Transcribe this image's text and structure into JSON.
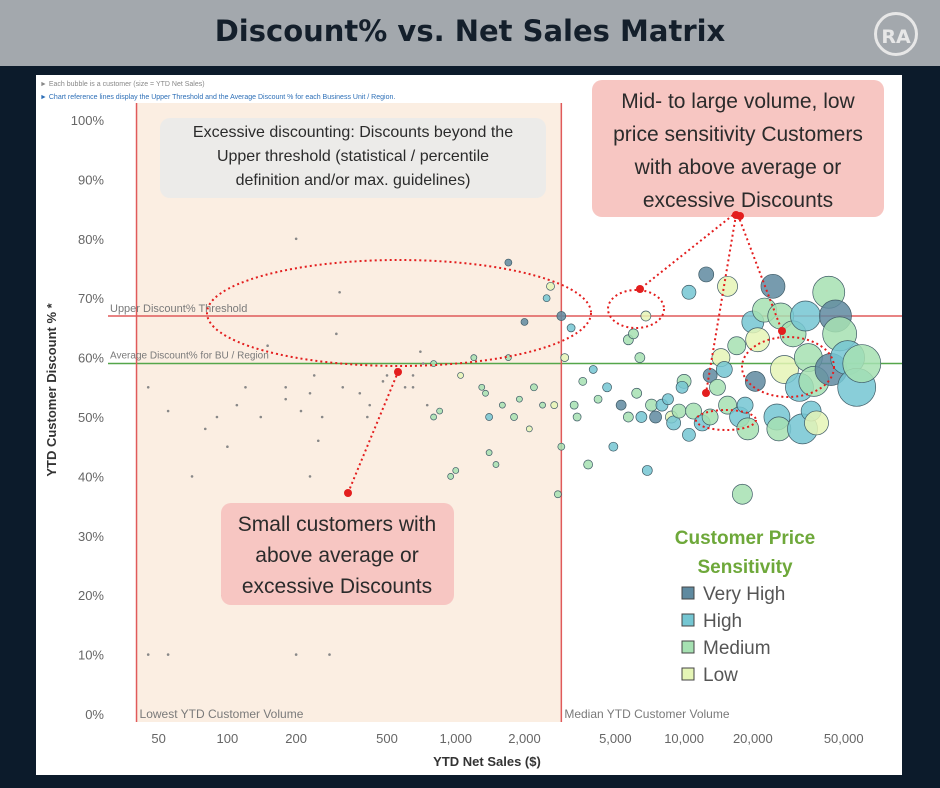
{
  "page": {
    "title": "Discount% vs. Net Sales Matrix",
    "logo_text": "RA",
    "notes": [
      "► Each bubble is a customer (size = YTD Net Sales)",
      "► Chart reference lines display the Upper Threshold and the Average Discount % for each Business Unit / Region."
    ]
  },
  "callouts": {
    "excessive": [
      "Excessive discounting: Discounts beyond the",
      "Upper threshold (statistical / percentile",
      "definition and/or max. guidelines)"
    ],
    "midlarge": [
      "Mid- to large volume, low",
      "price sensitivity Customers",
      "with above average or",
      "excessive Discounts"
    ],
    "small": [
      "Small customers with",
      "above average or",
      "excessive Discounts"
    ]
  },
  "colors": {
    "very_high": "#5f8aa0",
    "high": "#74c6d2",
    "medium": "#a6e1b2",
    "low": "#e5f5b6",
    "small_dot": "#b0b0b0",
    "ref_line_red": "#e05a5a",
    "avg_line_green": "#55a64a",
    "shade": "#fbeee2",
    "annotation_red": "#e31e1e",
    "callout_pink": "#f7c6c2",
    "callout_grey": "#ebebe9",
    "legend_title": "#6ea83a"
  },
  "chart_data": {
    "type": "scatter",
    "title": "",
    "xlabel": "YTD Net Sales ($)",
    "ylabel": "YTD Customer Discount % *",
    "xscale": "log",
    "xlim": [
      30,
      90000
    ],
    "ylim": [
      0,
      100
    ],
    "x_ticks": [
      50,
      100,
      200,
      500,
      1000,
      2000,
      5000,
      10000,
      20000,
      50000
    ],
    "x_tick_labels": [
      "50",
      "100",
      "200",
      "500",
      "1,000",
      "2,000",
      "5,000",
      "10,000",
      "20,000",
      "50,000"
    ],
    "y_ticks": [
      0,
      10,
      20,
      30,
      40,
      50,
      60,
      70,
      80,
      90,
      100
    ],
    "y_tick_labels": [
      "0%",
      "10%",
      "20%",
      "30%",
      "40%",
      "50%",
      "60%",
      "70%",
      "80%",
      "90%",
      "100%"
    ],
    "grid": false,
    "reference_lines": [
      {
        "axis": "y",
        "value": 67,
        "label": "Upper Discount% Threshold"
      },
      {
        "axis": "y",
        "value": 59,
        "label": "Average Discount% for BU / Region"
      },
      {
        "axis": "x",
        "value": 40,
        "label": "Lowest YTD Customer Volume"
      },
      {
        "axis": "x",
        "value": 2900,
        "label": "Median YTD Customer Volume"
      }
    ],
    "legend": {
      "title": [
        "Customer Price",
        "Sensitivity"
      ],
      "position": "right",
      "entries": [
        {
          "key": "very_high",
          "label": "Very High"
        },
        {
          "key": "high",
          "label": "High"
        },
        {
          "key": "medium",
          "label": "Medium"
        },
        {
          "key": "low",
          "label": "Low"
        }
      ]
    },
    "points": [
      {
        "x": 45,
        "y": 10,
        "c": "small"
      },
      {
        "x": 55,
        "y": 10,
        "c": "small"
      },
      {
        "x": 200,
        "y": 10,
        "c": "small"
      },
      {
        "x": 280,
        "y": 10,
        "c": "small"
      },
      {
        "x": 95,
        "y": 20,
        "c": "small"
      },
      {
        "x": 45,
        "y": 55,
        "c": "small"
      },
      {
        "x": 55,
        "y": 51,
        "c": "small"
      },
      {
        "x": 70,
        "y": 40,
        "c": "small"
      },
      {
        "x": 80,
        "y": 48,
        "c": "small"
      },
      {
        "x": 90,
        "y": 50,
        "c": "small"
      },
      {
        "x": 100,
        "y": 45,
        "c": "small"
      },
      {
        "x": 110,
        "y": 52,
        "c": "small"
      },
      {
        "x": 120,
        "y": 55,
        "c": "small"
      },
      {
        "x": 140,
        "y": 50,
        "c": "small"
      },
      {
        "x": 150,
        "y": 62,
        "c": "small"
      },
      {
        "x": 180,
        "y": 55,
        "c": "small"
      },
      {
        "x": 200,
        "y": 80,
        "c": "small"
      },
      {
        "x": 210,
        "y": 51,
        "c": "small"
      },
      {
        "x": 230,
        "y": 54,
        "c": "small"
      },
      {
        "x": 250,
        "y": 46,
        "c": "small"
      },
      {
        "x": 260,
        "y": 50,
        "c": "small"
      },
      {
        "x": 300,
        "y": 64,
        "c": "small"
      },
      {
        "x": 310,
        "y": 71,
        "c": "small"
      },
      {
        "x": 320,
        "y": 55,
        "c": "small"
      },
      {
        "x": 180,
        "y": 53,
        "c": "small"
      },
      {
        "x": 230,
        "y": 40,
        "c": "small"
      },
      {
        "x": 380,
        "y": 54,
        "c": "small"
      },
      {
        "x": 240,
        "y": 57,
        "c": "small"
      },
      {
        "x": 550,
        "y": 58,
        "c": "small"
      },
      {
        "x": 650,
        "y": 57,
        "c": "small"
      },
      {
        "x": 720,
        "y": 59,
        "c": "small"
      },
      {
        "x": 410,
        "y": 50,
        "c": "small"
      },
      {
        "x": 420,
        "y": 52,
        "c": "small"
      },
      {
        "x": 480,
        "y": 56,
        "c": "small"
      },
      {
        "x": 500,
        "y": 57,
        "c": "small"
      },
      {
        "x": 600,
        "y": 55,
        "c": "small"
      },
      {
        "x": 650,
        "y": 55,
        "c": "small"
      },
      {
        "x": 700,
        "y": 61,
        "c": "small"
      },
      {
        "x": 750,
        "y": 52,
        "c": "small"
      },
      {
        "x": 850,
        "y": 51,
        "c": "medium",
        "s": 3
      },
      {
        "x": 800,
        "y": 50,
        "c": "medium",
        "s": 3
      },
      {
        "x": 800,
        "y": 59,
        "c": "medium",
        "s": 3
      },
      {
        "x": 1050,
        "y": 57,
        "c": "low",
        "s": 3
      },
      {
        "x": 1000,
        "y": 41,
        "c": "medium",
        "s": 3
      },
      {
        "x": 950,
        "y": 40,
        "c": "medium",
        "s": 3
      },
      {
        "x": 1200,
        "y": 60,
        "c": "medium",
        "s": 3
      },
      {
        "x": 1300,
        "y": 55,
        "c": "medium",
        "s": 3
      },
      {
        "x": 1350,
        "y": 54,
        "c": "medium",
        "s": 3
      },
      {
        "x": 1400,
        "y": 50,
        "c": "high",
        "s": 3.5
      },
      {
        "x": 1400,
        "y": 44,
        "c": "medium",
        "s": 3
      },
      {
        "x": 1500,
        "y": 42,
        "c": "medium",
        "s": 3
      },
      {
        "x": 1600,
        "y": 52,
        "c": "medium",
        "s": 3
      },
      {
        "x": 1700,
        "y": 60,
        "c": "medium",
        "s": 3
      },
      {
        "x": 1700,
        "y": 76,
        "c": "very_high",
        "s": 3.5
      },
      {
        "x": 1800,
        "y": 50,
        "c": "medium",
        "s": 3.5
      },
      {
        "x": 1900,
        "y": 53,
        "c": "medium",
        "s": 3
      },
      {
        "x": 2000,
        "y": 66,
        "c": "very_high",
        "s": 3.5
      },
      {
        "x": 2100,
        "y": 48,
        "c": "low",
        "s": 3
      },
      {
        "x": 2200,
        "y": 55,
        "c": "medium",
        "s": 3.5
      },
      {
        "x": 2400,
        "y": 52,
        "c": "medium",
        "s": 3
      },
      {
        "x": 2500,
        "y": 70,
        "c": "high",
        "s": 3.5
      },
      {
        "x": 2600,
        "y": 72,
        "c": "low",
        "s": 4
      },
      {
        "x": 2700,
        "y": 52,
        "c": "low",
        "s": 3.5
      },
      {
        "x": 2800,
        "y": 37,
        "c": "medium",
        "s": 3.5
      },
      {
        "x": 2900,
        "y": 45,
        "c": "medium",
        "s": 3.5
      },
      {
        "x": 2900,
        "y": 67,
        "c": "very_high",
        "s": 4.5
      },
      {
        "x": 3000,
        "y": 60,
        "c": "low",
        "s": 4
      },
      {
        "x": 3200,
        "y": 65,
        "c": "high",
        "s": 4
      },
      {
        "x": 3300,
        "y": 52,
        "c": "medium",
        "s": 4
      },
      {
        "x": 3400,
        "y": 50,
        "c": "medium",
        "s": 4
      },
      {
        "x": 3600,
        "y": 56,
        "c": "medium",
        "s": 4
      },
      {
        "x": 3800,
        "y": 42,
        "c": "medium",
        "s": 4.5
      },
      {
        "x": 4000,
        "y": 58,
        "c": "high",
        "s": 4
      },
      {
        "x": 4200,
        "y": 53,
        "c": "medium",
        "s": 4
      },
      {
        "x": 4600,
        "y": 55,
        "c": "high",
        "s": 4.5
      },
      {
        "x": 4900,
        "y": 45,
        "c": "high",
        "s": 4.5
      },
      {
        "x": 5300,
        "y": 52,
        "c": "very_high",
        "s": 5
      },
      {
        "x": 5700,
        "y": 63,
        "c": "medium",
        "s": 5
      },
      {
        "x": 5700,
        "y": 50,
        "c": "medium",
        "s": 5
      },
      {
        "x": 6000,
        "y": 64,
        "c": "medium",
        "s": 5
      },
      {
        "x": 6200,
        "y": 54,
        "c": "medium",
        "s": 5
      },
      {
        "x": 6400,
        "y": 60,
        "c": "medium",
        "s": 5
      },
      {
        "x": 6500,
        "y": 50,
        "c": "high",
        "s": 5.5
      },
      {
        "x": 6800,
        "y": 67,
        "c": "low",
        "s": 5
      },
      {
        "x": 6900,
        "y": 41,
        "c": "high",
        "s": 5
      },
      {
        "x": 7200,
        "y": 52,
        "c": "medium",
        "s": 6
      },
      {
        "x": 7500,
        "y": 50,
        "c": "very_high",
        "s": 6
      },
      {
        "x": 8000,
        "y": 52,
        "c": "high",
        "s": 6
      },
      {
        "x": 8500,
        "y": 53,
        "c": "high",
        "s": 5.5
      },
      {
        "x": 8800,
        "y": 50,
        "c": "low",
        "s": 6
      },
      {
        "x": 9000,
        "y": 49,
        "c": "high",
        "s": 7
      },
      {
        "x": 9500,
        "y": 51,
        "c": "medium",
        "s": 7
      },
      {
        "x": 10000,
        "y": 56,
        "c": "medium",
        "s": 7
      },
      {
        "x": 10500,
        "y": 71,
        "c": "high",
        "s": 7
      },
      {
        "x": 10500,
        "y": 47,
        "c": "high",
        "s": 6.5
      },
      {
        "x": 11000,
        "y": 51,
        "c": "medium",
        "s": 8
      },
      {
        "x": 12000,
        "y": 49,
        "c": "high",
        "s": 8
      },
      {
        "x": 12500,
        "y": 74,
        "c": "very_high",
        "s": 7.5
      },
      {
        "x": 13000,
        "y": 57,
        "c": "very_high",
        "s": 7
      },
      {
        "x": 13000,
        "y": 50,
        "c": "medium",
        "s": 8
      },
      {
        "x": 14000,
        "y": 55,
        "c": "medium",
        "s": 8
      },
      {
        "x": 14500,
        "y": 60,
        "c": "low",
        "s": 9
      },
      {
        "x": 15000,
        "y": 58,
        "c": "high",
        "s": 8
      },
      {
        "x": 15500,
        "y": 52,
        "c": "medium",
        "s": 9
      },
      {
        "x": 15500,
        "y": 72,
        "c": "low",
        "s": 10
      },
      {
        "x": 17000,
        "y": 62,
        "c": "medium",
        "s": 9
      },
      {
        "x": 17500,
        "y": 50,
        "c": "high",
        "s": 10
      },
      {
        "x": 18000,
        "y": 37,
        "c": "medium",
        "s": 10
      },
      {
        "x": 19000,
        "y": 48,
        "c": "medium",
        "s": 11
      },
      {
        "x": 20000,
        "y": 66,
        "c": "high",
        "s": 11
      },
      {
        "x": 20500,
        "y": 56,
        "c": "very_high",
        "s": 10
      },
      {
        "x": 21000,
        "y": 63,
        "c": "low",
        "s": 12
      },
      {
        "x": 22500,
        "y": 68,
        "c": "medium",
        "s": 12
      },
      {
        "x": 24500,
        "y": 72,
        "c": "very_high",
        "s": 12
      },
      {
        "x": 25500,
        "y": 50,
        "c": "high",
        "s": 13
      },
      {
        "x": 26500,
        "y": 67,
        "c": "medium",
        "s": 13
      },
      {
        "x": 27500,
        "y": 58,
        "c": "low",
        "s": 14
      },
      {
        "x": 26000,
        "y": 48,
        "c": "medium",
        "s": 12
      },
      {
        "x": 30000,
        "y": 64,
        "c": "medium",
        "s": 13
      },
      {
        "x": 32000,
        "y": 55,
        "c": "high",
        "s": 14
      },
      {
        "x": 33000,
        "y": 48,
        "c": "high",
        "s": 15
      },
      {
        "x": 34000,
        "y": 67,
        "c": "high",
        "s": 15
      },
      {
        "x": 35000,
        "y": 60,
        "c": "medium",
        "s": 14
      },
      {
        "x": 37000,
        "y": 56,
        "c": "medium",
        "s": 15
      },
      {
        "x": 43000,
        "y": 71,
        "c": "medium",
        "s": 16
      },
      {
        "x": 44000,
        "y": 58,
        "c": "very_high",
        "s": 16
      },
      {
        "x": 46000,
        "y": 67,
        "c": "very_high",
        "s": 16
      },
      {
        "x": 48000,
        "y": 64,
        "c": "medium",
        "s": 17
      },
      {
        "x": 52000,
        "y": 60,
        "c": "high",
        "s": 17
      },
      {
        "x": 57000,
        "y": 55,
        "c": "high",
        "s": 19
      },
      {
        "x": 60000,
        "y": 59,
        "c": "medium",
        "s": 19
      },
      {
        "x": 36000,
        "y": 51,
        "c": "high",
        "s": 10
      },
      {
        "x": 38000,
        "y": 49,
        "c": "low",
        "s": 12
      },
      {
        "x": 18500,
        "y": 52,
        "c": "high",
        "s": 8
      },
      {
        "x": 9800,
        "y": 55,
        "c": "high",
        "s": 6
      }
    ]
  }
}
